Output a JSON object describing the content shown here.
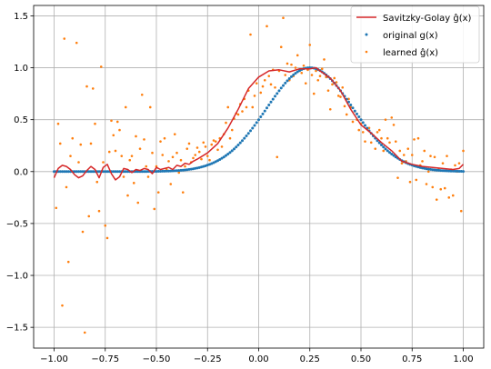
{
  "chart_data": {
    "type": "scatter",
    "title": "",
    "xlabel": "",
    "ylabel": "",
    "xlim": [
      -1.1,
      1.1
    ],
    "ylim": [
      -1.7,
      1.6
    ],
    "grid": true,
    "legend_position": "top-right",
    "x_ticks": [
      "−1.00",
      "−0.75",
      "−0.50",
      "−0.25",
      "0.00",
      "0.25",
      "0.50",
      "0.75",
      "1.00"
    ],
    "x_tick_values": [
      -1.0,
      -0.75,
      -0.5,
      -0.25,
      0.0,
      0.25,
      0.5,
      0.75,
      1.0
    ],
    "y_ticks": [
      "−1.5",
      "−1.0",
      "−0.5",
      "0.0",
      "0.5",
      "1.0",
      "1.5"
    ],
    "y_tick_values": [
      -1.5,
      -1.0,
      -0.5,
      0.0,
      0.5,
      1.0,
      1.5
    ],
    "colors": {
      "savgol": "#d62728",
      "original": "#1f77b4",
      "learned": "#ff7f0e"
    },
    "series": [
      {
        "name": "Savitzky-Golay ĝ(x)",
        "kind": "line",
        "x": [
          -1.0,
          -0.98,
          -0.96,
          -0.94,
          -0.92,
          -0.9,
          -0.88,
          -0.86,
          -0.84,
          -0.82,
          -0.8,
          -0.78,
          -0.76,
          -0.74,
          -0.72,
          -0.7,
          -0.68,
          -0.66,
          -0.64,
          -0.62,
          -0.6,
          -0.58,
          -0.56,
          -0.54,
          -0.52,
          -0.5,
          -0.48,
          -0.46,
          -0.44,
          -0.42,
          -0.4,
          -0.38,
          -0.36,
          -0.34,
          -0.32,
          -0.3,
          -0.25,
          -0.2,
          -0.15,
          -0.1,
          -0.05,
          0.0,
          0.05,
          0.1,
          0.15,
          0.2,
          0.25,
          0.28,
          0.3,
          0.35,
          0.4,
          0.45,
          0.5,
          0.55,
          0.6,
          0.65,
          0.7,
          0.75,
          0.8,
          0.85,
          0.9,
          0.95,
          0.98,
          1.0
        ],
        "y": [
          -0.06,
          0.03,
          0.06,
          0.05,
          0.02,
          -0.03,
          -0.06,
          -0.04,
          0.01,
          0.05,
          0.02,
          -0.06,
          0.04,
          0.07,
          -0.02,
          -0.08,
          -0.05,
          0.03,
          0.02,
          -0.01,
          0.02,
          0.01,
          0.03,
          0.02,
          -0.02,
          0.04,
          0.02,
          0.03,
          0.04,
          0.02,
          0.06,
          0.05,
          0.08,
          0.07,
          0.1,
          0.12,
          0.18,
          0.27,
          0.42,
          0.6,
          0.8,
          0.91,
          0.97,
          0.98,
          0.96,
          0.99,
          0.99,
          1.0,
          0.97,
          0.9,
          0.78,
          0.6,
          0.45,
          0.37,
          0.28,
          0.2,
          0.1,
          0.07,
          0.05,
          0.04,
          0.03,
          0.02,
          0.03,
          0.07
        ]
      },
      {
        "name": "original g(x)",
        "kind": "scatter"
      },
      {
        "name": "learned ĝ(x)",
        "kind": "scatter",
        "points": [
          [
            -0.99,
            -0.35
          ],
          [
            -0.98,
            0.46
          ],
          [
            -0.97,
            0.27
          ],
          [
            -0.96,
            -1.29
          ],
          [
            -0.95,
            1.28
          ],
          [
            -0.94,
            -0.15
          ],
          [
            -0.93,
            -0.87
          ],
          [
            -0.92,
            0.15
          ],
          [
            -0.91,
            0.32
          ],
          [
            -0.89,
            1.24
          ],
          [
            -0.88,
            0.09
          ],
          [
            -0.87,
            0.26
          ],
          [
            -0.86,
            -0.58
          ],
          [
            -0.85,
            -1.55
          ],
          [
            -0.84,
            0.82
          ],
          [
            -0.83,
            -0.43
          ],
          [
            -0.82,
            0.27
          ],
          [
            -0.81,
            0.8
          ],
          [
            -0.8,
            0.46
          ],
          [
            -0.79,
            -0.1
          ],
          [
            -0.78,
            -0.38
          ],
          [
            -0.77,
            1.01
          ],
          [
            -0.76,
            0.09
          ],
          [
            -0.75,
            -0.52
          ],
          [
            -0.74,
            -0.64
          ],
          [
            -0.73,
            0.19
          ],
          [
            -0.72,
            0.49
          ],
          [
            -0.71,
            0.35
          ],
          [
            -0.7,
            0.2
          ],
          [
            -0.69,
            0.48
          ],
          [
            -0.68,
            0.4
          ],
          [
            -0.67,
            0.15
          ],
          [
            -0.66,
            -0.05
          ],
          [
            -0.65,
            0.62
          ],
          [
            -0.64,
            -0.23
          ],
          [
            -0.63,
            0.11
          ],
          [
            -0.62,
            0.15
          ],
          [
            -0.61,
            -0.11
          ],
          [
            -0.6,
            0.34
          ],
          [
            -0.59,
            -0.3
          ],
          [
            -0.58,
            0.22
          ],
          [
            -0.57,
            0.74
          ],
          [
            -0.56,
            0.31
          ],
          [
            -0.55,
            0.05
          ],
          [
            -0.54,
            -0.05
          ],
          [
            -0.53,
            0.62
          ],
          [
            -0.52,
            0.18
          ],
          [
            -0.51,
            -0.36
          ],
          [
            -0.5,
            0.05
          ],
          [
            -0.49,
            -0.2
          ],
          [
            -0.48,
            0.29
          ],
          [
            -0.47,
            0.16
          ],
          [
            -0.46,
            0.32
          ],
          [
            -0.45,
            0.02
          ],
          [
            -0.44,
            0.1
          ],
          [
            -0.43,
            -0.12
          ],
          [
            -0.42,
            0.14
          ],
          [
            -0.41,
            0.36
          ],
          [
            -0.4,
            0.18
          ],
          [
            -0.39,
            -0.01
          ],
          [
            -0.38,
            0.11
          ],
          [
            -0.37,
            -0.2
          ],
          [
            -0.36,
            0.05
          ],
          [
            -0.35,
            0.22
          ],
          [
            -0.34,
            0.27
          ],
          [
            -0.33,
            0.09
          ],
          [
            -0.32,
            0.13
          ],
          [
            -0.31,
            0.16
          ],
          [
            -0.3,
            0.23
          ],
          [
            -0.29,
            0.19
          ],
          [
            -0.28,
            0.12
          ],
          [
            -0.27,
            0.28
          ],
          [
            -0.26,
            0.24
          ],
          [
            -0.25,
            0.15
          ],
          [
            -0.24,
            0.11
          ],
          [
            -0.23,
            0.26
          ],
          [
            -0.22,
            0.3
          ],
          [
            -0.21,
            0.29
          ],
          [
            -0.2,
            0.21
          ],
          [
            -0.19,
            0.32
          ],
          [
            -0.18,
            0.24
          ],
          [
            -0.17,
            0.36
          ],
          [
            -0.16,
            0.47
          ],
          [
            -0.15,
            0.62
          ],
          [
            -0.14,
            0.32
          ],
          [
            -0.13,
            0.4
          ],
          [
            -0.12,
            0.51
          ],
          [
            -0.11,
            0.56
          ],
          [
            -0.1,
            0.55
          ],
          [
            -0.09,
            0.65
          ],
          [
            -0.08,
            0.58
          ],
          [
            -0.07,
            0.7
          ],
          [
            -0.06,
            0.62
          ],
          [
            -0.05,
            0.78
          ],
          [
            -0.04,
            1.32
          ],
          [
            -0.03,
            0.62
          ],
          [
            -0.02,
            0.73
          ],
          [
            -0.01,
            0.85
          ],
          [
            0.01,
            0.76
          ],
          [
            0.02,
            0.82
          ],
          [
            0.03,
            0.88
          ],
          [
            0.04,
            1.4
          ],
          [
            0.05,
            0.92
          ],
          [
            0.06,
            0.84
          ],
          [
            0.07,
            0.98
          ],
          [
            0.08,
            0.81
          ],
          [
            0.09,
            0.14
          ],
          [
            0.1,
            0.97
          ],
          [
            0.11,
            1.2
          ],
          [
            0.12,
            1.48
          ],
          [
            0.13,
            0.93
          ],
          [
            0.14,
            1.04
          ],
          [
            0.15,
            0.88
          ],
          [
            0.16,
            1.03
          ],
          [
            0.17,
            0.92
          ],
          [
            0.18,
            1.0
          ],
          [
            0.19,
            1.12
          ],
          [
            0.2,
            0.97
          ],
          [
            0.21,
            0.95
          ],
          [
            0.22,
            1.02
          ],
          [
            0.23,
            0.85
          ],
          [
            0.24,
            0.98
          ],
          [
            0.25,
            1.22
          ],
          [
            0.26,
            0.93
          ],
          [
            0.27,
            0.75
          ],
          [
            0.28,
            0.97
          ],
          [
            0.29,
            0.88
          ],
          [
            0.3,
            0.92
          ],
          [
            0.31,
            0.99
          ],
          [
            0.32,
            1.08
          ],
          [
            0.33,
            0.91
          ],
          [
            0.34,
            0.78
          ],
          [
            0.35,
            0.6
          ],
          [
            0.36,
            0.84
          ],
          [
            0.37,
            0.9
          ],
          [
            0.38,
            0.86
          ],
          [
            0.39,
            0.73
          ],
          [
            0.4,
            0.72
          ],
          [
            0.41,
            0.81
          ],
          [
            0.42,
            0.63
          ],
          [
            0.43,
            0.55
          ],
          [
            0.44,
            0.7
          ],
          [
            0.45,
            0.62
          ],
          [
            0.46,
            0.48
          ],
          [
            0.47,
            0.58
          ],
          [
            0.48,
            0.5
          ],
          [
            0.49,
            0.4
          ],
          [
            0.5,
            0.46
          ],
          [
            0.51,
            0.38
          ],
          [
            0.52,
            0.29
          ],
          [
            0.53,
            0.41
          ],
          [
            0.54,
            0.42
          ],
          [
            0.55,
            0.28
          ],
          [
            0.56,
            0.35
          ],
          [
            0.57,
            0.22
          ],
          [
            0.58,
            0.38
          ],
          [
            0.59,
            0.4
          ],
          [
            0.6,
            0.32
          ],
          [
            0.61,
            0.2
          ],
          [
            0.62,
            0.5
          ],
          [
            0.63,
            0.32
          ],
          [
            0.64,
            0.28
          ],
          [
            0.65,
            0.52
          ],
          [
            0.66,
            0.45
          ],
          [
            0.67,
            0.29
          ],
          [
            0.68,
            -0.06
          ],
          [
            0.69,
            0.2
          ],
          [
            0.7,
            0.08
          ],
          [
            0.71,
            0.16
          ],
          [
            0.72,
            0.1
          ],
          [
            0.73,
            0.22
          ],
          [
            0.74,
            -0.1
          ],
          [
            0.75,
            0.16
          ],
          [
            0.76,
            0.31
          ],
          [
            0.77,
            -0.08
          ],
          [
            0.78,
            0.32
          ],
          [
            0.79,
            0.06
          ],
          [
            0.8,
            0.1
          ],
          [
            0.81,
            0.2
          ],
          [
            0.82,
            -0.12
          ],
          [
            0.83,
            0.0
          ],
          [
            0.84,
            0.15
          ],
          [
            0.85,
            -0.15
          ],
          [
            0.86,
            0.14
          ],
          [
            0.87,
            -0.27
          ],
          [
            0.88,
            0.02
          ],
          [
            0.89,
            -0.17
          ],
          [
            0.9,
            0.08
          ],
          [
            0.91,
            -0.16
          ],
          [
            0.92,
            0.15
          ],
          [
            0.93,
            -0.25
          ],
          [
            0.94,
            0.02
          ],
          [
            0.95,
            -0.23
          ],
          [
            0.96,
            0.06
          ],
          [
            0.97,
            0.0
          ],
          [
            0.98,
            0.08
          ],
          [
            0.99,
            -0.38
          ],
          [
            1.0,
            0.2
          ]
        ]
      }
    ]
  }
}
